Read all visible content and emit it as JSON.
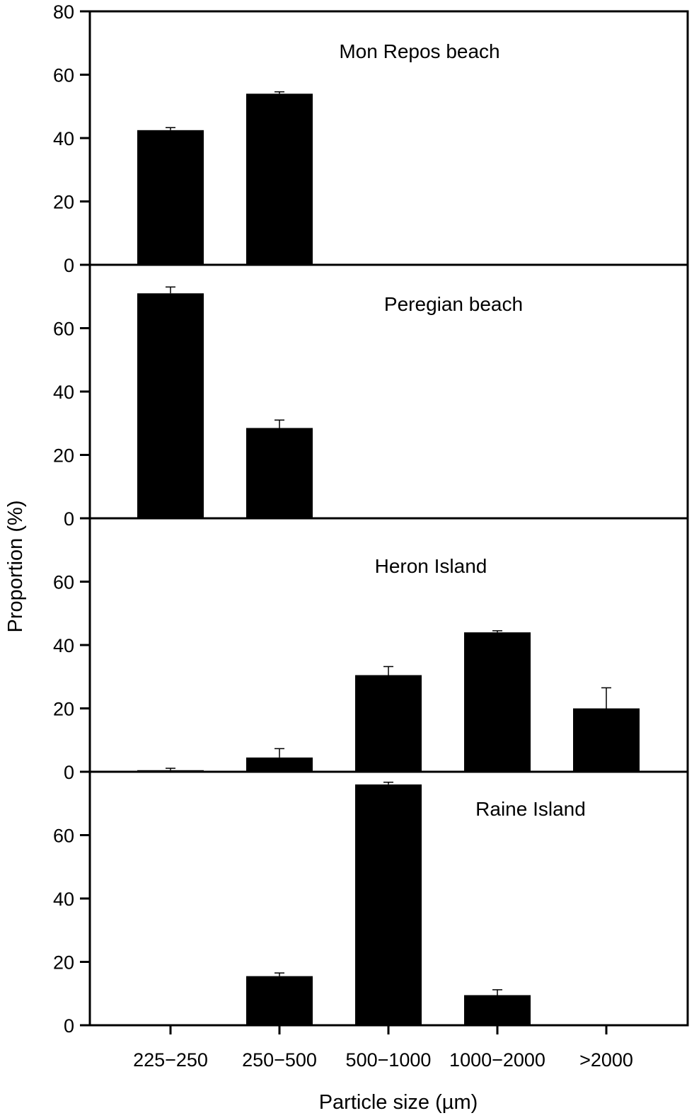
{
  "chart_data": {
    "type": "bar",
    "xlabel": "Particle size (µm)",
    "ylabel": "Proportion (%)",
    "categories": [
      "225−250",
      "250−500",
      "500−1000",
      "1000−2000",
      ">2000"
    ],
    "panels": [
      {
        "title": "Mon Repos beach",
        "ylim": [
          0,
          80
        ],
        "yticks": [
          "0",
          "20",
          "40",
          "60",
          "80"
        ],
        "values": [
          42.5,
          54,
          0,
          0,
          0
        ],
        "errors": [
          0.8,
          0.6,
          0,
          0,
          0
        ]
      },
      {
        "title": "Peregian beach",
        "ylim": [
          0,
          80
        ],
        "yticks": [
          "0",
          "20",
          "40",
          "60"
        ],
        "values": [
          71,
          28.5,
          0,
          0,
          0
        ],
        "errors": [
          2,
          2.5,
          0,
          0,
          0
        ]
      },
      {
        "title": "Heron Island",
        "ylim": [
          0,
          80
        ],
        "yticks": [
          "0",
          "20",
          "40",
          "60"
        ],
        "values": [
          0.5,
          4.5,
          30.5,
          44,
          20
        ],
        "errors": [
          0.6,
          2.8,
          2.7,
          0.5,
          6.5
        ]
      },
      {
        "title": "Raine Island",
        "ylim": [
          0,
          80
        ],
        "yticks": [
          "0",
          "20",
          "40",
          "60"
        ],
        "values": [
          0,
          15.5,
          76,
          9.5,
          0
        ],
        "errors": [
          0,
          1,
          0.7,
          1.7,
          0
        ]
      }
    ]
  }
}
